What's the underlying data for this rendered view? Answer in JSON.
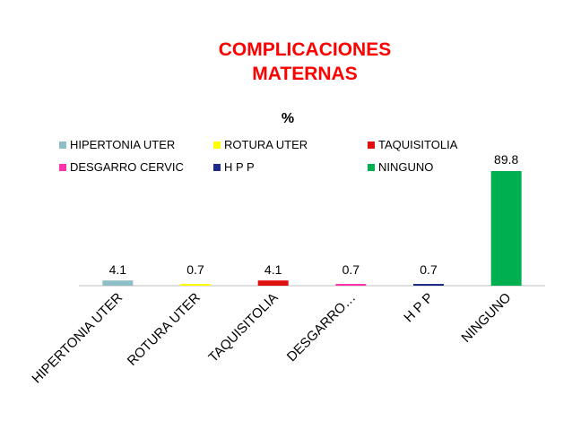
{
  "title_line1": "COMPLICACIONES",
  "title_line2": "MATERNAS",
  "chart_data": {
    "type": "bar",
    "title": "%",
    "categories": [
      "HIPERTONIA UTER",
      "ROTURA UTER",
      "TAQUISITOLIA",
      "DESGARRO…",
      "H P P",
      "NINGUNO"
    ],
    "values": [
      4.1,
      0.7,
      4.1,
      0.7,
      0.7,
      89.8
    ],
    "value_labels": [
      "4.1",
      "0.7",
      "4.1",
      "0.7",
      "0.7",
      "89.8"
    ],
    "colors": [
      "#8fbfc6",
      "#ffff00",
      "#e01010",
      "#ff33aa",
      "#1f2a8a",
      "#00b050"
    ],
    "legend": [
      {
        "label": "HIPERTONIA UTER",
        "color": "#8fbfc6"
      },
      {
        "label": "ROTURA UTER",
        "color": "#ffff00"
      },
      {
        "label": "TAQUISITOLIA",
        "color": "#e01010"
      },
      {
        "label": "DESGARRO CERVIC",
        "color": "#ff33aa"
      },
      {
        "label": "H P P",
        "color": "#1f2a8a"
      },
      {
        "label": "NINGUNO",
        "color": "#00b050"
      }
    ],
    "legend_placement": "top",
    "ylim": [
      0,
      100
    ],
    "grid": false
  }
}
